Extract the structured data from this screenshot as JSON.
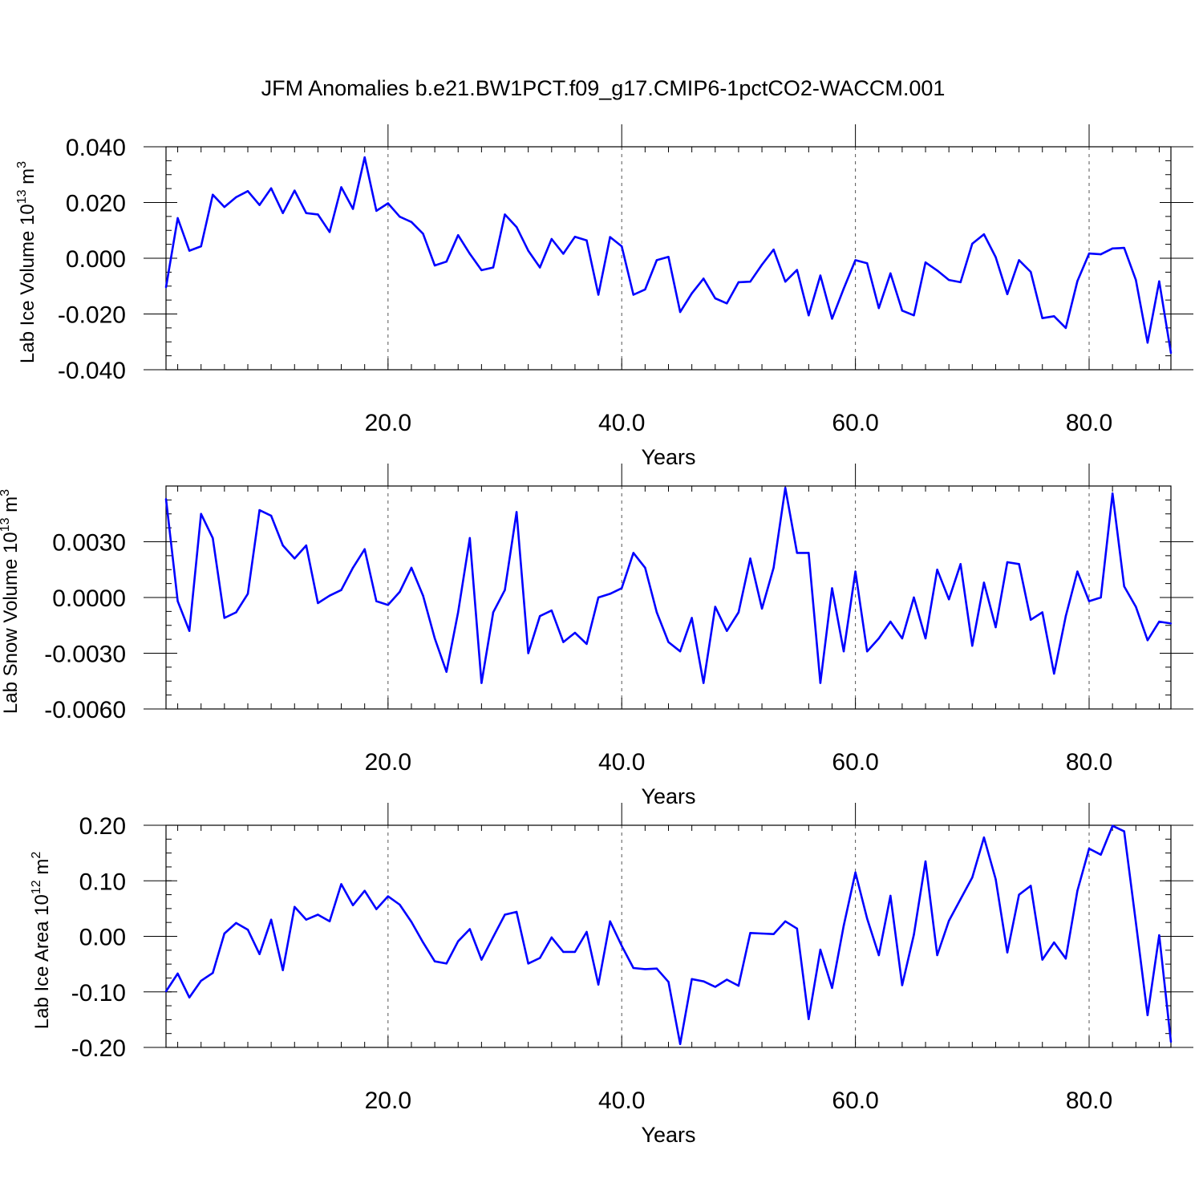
{
  "title": "JFM Anomalies b.e21.BW1PCT.f09_g17.CMIP6-1pctCO2-WACCM.001",
  "colors": {
    "line": "#0000ff",
    "axis": "#000000",
    "grid": "#555555"
  },
  "chart_data": [
    {
      "type": "line",
      "ylabel_text": "Lab Ice Volume 10",
      "ylabel_exp": "13",
      "ylabel_unit": " m",
      "ylabel_unit_exp": "3",
      "xlabel": "Years",
      "xlim": [
        1,
        87
      ],
      "ylim": [
        -0.04,
        0.04
      ],
      "xticks": [
        20,
        40,
        60,
        80
      ],
      "xtick_labels": [
        "20.0",
        "40.0",
        "60.0",
        "80.0"
      ],
      "yticks": [
        -0.04,
        -0.02,
        0.0,
        0.02,
        0.04
      ],
      "ytick_labels": [
        "-0.040",
        "-0.020",
        "0.000",
        "0.020",
        "0.040"
      ],
      "x": [
        1,
        2,
        3,
        4,
        5,
        6,
        7,
        8,
        9,
        10,
        11,
        12,
        13,
        14,
        15,
        16,
        17,
        18,
        19,
        20,
        21,
        22,
        23,
        24,
        25,
        26,
        27,
        28,
        29,
        30,
        31,
        32,
        33,
        34,
        35,
        36,
        37,
        38,
        39,
        40,
        41,
        42,
        43,
        44,
        45,
        46,
        47,
        48,
        49,
        50,
        51,
        52,
        53,
        54,
        55,
        56,
        57,
        58,
        59,
        60,
        61,
        62,
        63,
        64,
        65,
        66,
        67,
        68,
        69,
        70,
        71,
        72,
        73,
        74,
        75,
        76,
        77,
        78,
        79,
        80,
        81,
        82,
        83,
        84,
        85,
        86,
        87
      ],
      "values": [
        -0.0104,
        0.0144,
        0.0027,
        0.0043,
        0.0228,
        0.0184,
        0.0219,
        0.0241,
        0.0191,
        0.0251,
        0.0162,
        0.0243,
        0.0162,
        0.0157,
        0.0094,
        0.0255,
        0.0177,
        0.0362,
        0.017,
        0.0197,
        0.0149,
        0.013,
        0.0088,
        -0.0026,
        -0.0012,
        0.0083,
        0.0016,
        -0.0043,
        -0.0033,
        0.0157,
        0.0112,
        0.0027,
        -0.0033,
        0.0069,
        0.0016,
        0.0077,
        0.0064,
        -0.0131,
        0.0076,
        0.0043,
        -0.0131,
        -0.0112,
        -0.0007,
        0.0005,
        -0.0193,
        -0.0126,
        -0.0073,
        -0.0144,
        -0.0162,
        -0.0086,
        -0.0084,
        -0.0023,
        0.0031,
        -0.0084,
        -0.0042,
        -0.0205,
        -0.0062,
        -0.0217,
        -0.0109,
        -0.0007,
        -0.0018,
        -0.0179,
        -0.0054,
        -0.0188,
        -0.0205,
        -0.0015,
        -0.0044,
        -0.0078,
        -0.0086,
        0.0052,
        0.0086,
        0.0004,
        -0.0129,
        -0.0007,
        -0.0049,
        -0.0215,
        -0.0208,
        -0.025,
        -0.0082,
        0.0017,
        0.0014,
        0.0035,
        0.0037,
        -0.0078,
        -0.0303,
        -0.0083,
        -0.034
      ]
    },
    {
      "type": "line",
      "ylabel_text": "Lab Snow Volume 10",
      "ylabel_exp": "13",
      "ylabel_unit": " m",
      "ylabel_unit_exp": "3",
      "xlabel": "Years",
      "xlim": [
        1,
        87
      ],
      "ylim": [
        -0.006,
        0.006
      ],
      "xticks": [
        20,
        40,
        60,
        80
      ],
      "xtick_labels": [
        "20.0",
        "40.0",
        "60.0",
        "80.0"
      ],
      "yticks": [
        -0.006,
        -0.003,
        0.0,
        0.003
      ],
      "ytick_labels": [
        "-0.0060",
        "-0.0030",
        "0.0000",
        "0.0030"
      ],
      "x": [
        1,
        2,
        3,
        4,
        5,
        6,
        7,
        8,
        9,
        10,
        11,
        12,
        13,
        14,
        15,
        16,
        17,
        18,
        19,
        20,
        21,
        22,
        23,
        24,
        25,
        26,
        27,
        28,
        29,
        30,
        31,
        32,
        33,
        34,
        35,
        36,
        37,
        38,
        39,
        40,
        41,
        42,
        43,
        44,
        45,
        46,
        47,
        48,
        49,
        50,
        51,
        52,
        53,
        54,
        55,
        56,
        57,
        58,
        59,
        60,
        61,
        62,
        63,
        64,
        65,
        66,
        67,
        68,
        69,
        70,
        71,
        72,
        73,
        74,
        75,
        76,
        77,
        78,
        79,
        80,
        81,
        82,
        83,
        84,
        85,
        86,
        87
      ],
      "values": [
        0.0053,
        -0.0002,
        -0.0018,
        0.0045,
        0.0032,
        -0.0011,
        -0.0008,
        0.0002,
        0.0047,
        0.0044,
        0.0028,
        0.0021,
        0.0028,
        -0.0003,
        0.0001,
        0.0004,
        0.0016,
        0.0026,
        -0.0002,
        -0.0004,
        0.0003,
        0.0016,
        0.0001,
        -0.0022,
        -0.004,
        -0.0008,
        0.0032,
        -0.0046,
        -0.0008,
        0.0004,
        0.0046,
        -0.003,
        -0.001,
        -0.0007,
        -0.0024,
        -0.0019,
        -0.0025,
        0.0,
        0.0002,
        0.0005,
        0.0024,
        0.0016,
        -0.0008,
        -0.0024,
        -0.0029,
        -0.0011,
        -0.0046,
        -0.0005,
        -0.0018,
        -0.0008,
        0.0021,
        -0.0006,
        0.0016,
        0.0059,
        0.0024,
        0.0024,
        -0.0046,
        0.0005,
        -0.0029,
        0.0014,
        -0.0029,
        -0.0022,
        -0.0013,
        -0.0022,
        0.0,
        -0.0022,
        0.0015,
        -0.0001,
        0.0018,
        -0.0026,
        0.0008,
        -0.0016,
        0.0019,
        0.0018,
        -0.0012,
        -0.0008,
        -0.0041,
        -0.001,
        0.0014,
        -0.0002,
        0.0,
        0.0056,
        0.0006,
        -0.0005,
        -0.0023,
        -0.0013,
        -0.0014
      ]
    },
    {
      "type": "line",
      "ylabel_text": "Lab Ice Area 10",
      "ylabel_exp": "12",
      "ylabel_unit": " m",
      "ylabel_unit_exp": "2",
      "xlabel": "Years",
      "xlim": [
        1,
        87
      ],
      "ylim": [
        -0.2,
        0.2
      ],
      "xticks": [
        20,
        40,
        60,
        80
      ],
      "xtick_labels": [
        "20.0",
        "40.0",
        "60.0",
        "80.0"
      ],
      "yticks": [
        -0.2,
        -0.1,
        0.0,
        0.1,
        0.2
      ],
      "ytick_labels": [
        "-0.20",
        "-0.10",
        "0.00",
        "0.10",
        "0.20"
      ],
      "x": [
        1,
        2,
        3,
        4,
        5,
        6,
        7,
        8,
        9,
        10,
        11,
        12,
        13,
        14,
        15,
        16,
        17,
        18,
        19,
        20,
        21,
        22,
        23,
        24,
        25,
        26,
        27,
        28,
        29,
        30,
        31,
        32,
        33,
        34,
        35,
        36,
        37,
        38,
        39,
        40,
        41,
        42,
        43,
        44,
        45,
        46,
        47,
        48,
        49,
        50,
        51,
        52,
        53,
        54,
        55,
        56,
        57,
        58,
        59,
        60,
        61,
        62,
        63,
        64,
        65,
        66,
        67,
        68,
        69,
        70,
        71,
        72,
        73,
        74,
        75,
        76,
        77,
        78,
        79,
        80,
        81,
        82,
        83,
        84,
        85,
        86,
        87
      ],
      "values": [
        -0.099,
        -0.067,
        -0.11,
        -0.08,
        -0.066,
        0.005,
        0.024,
        0.012,
        -0.032,
        0.03,
        -0.061,
        0.053,
        0.03,
        0.039,
        0.027,
        0.094,
        0.056,
        0.082,
        0.049,
        0.072,
        0.057,
        0.026,
        -0.011,
        -0.045,
        -0.049,
        -0.009,
        0.013,
        -0.042,
        -0.001,
        0.039,
        0.044,
        -0.049,
        -0.039,
        -0.002,
        -0.028,
        -0.028,
        0.008,
        -0.087,
        0.027,
        -0.017,
        -0.057,
        -0.059,
        -0.058,
        -0.082,
        -0.194,
        -0.077,
        -0.081,
        -0.091,
        -0.078,
        -0.089,
        0.006,
        0.005,
        0.004,
        0.027,
        0.014,
        -0.149,
        -0.024,
        -0.093,
        0.019,
        0.115,
        0.032,
        -0.034,
        0.073,
        -0.088,
        0.003,
        0.135,
        -0.034,
        0.028,
        0.067,
        0.106,
        0.178,
        0.103,
        -0.029,
        0.075,
        0.091,
        -0.042,
        -0.011,
        -0.04,
        0.082,
        0.158,
        0.147,
        0.199,
        0.189,
        0.025,
        -0.142,
        0.002,
        -0.19
      ]
    }
  ]
}
